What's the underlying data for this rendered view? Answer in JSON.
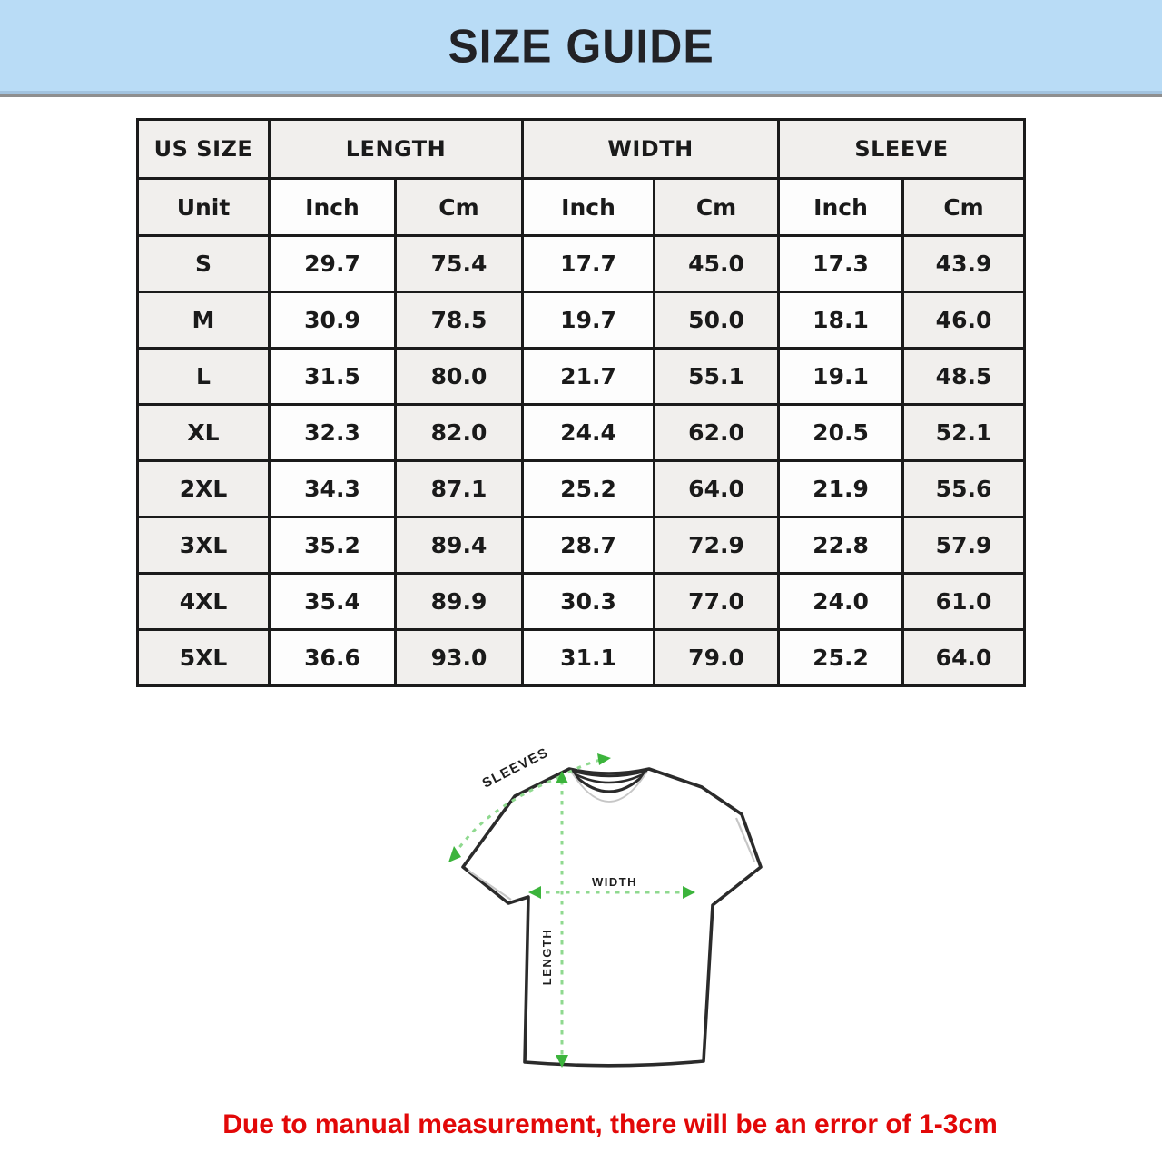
{
  "banner": {
    "title": "SIZE GUIDE",
    "bg_color": "#b9dcf6"
  },
  "table": {
    "col_groups": [
      {
        "label": "US SIZE",
        "span": 1
      },
      {
        "label": "LENGTH",
        "span": 2
      },
      {
        "label": "WIDTH",
        "span": 2
      },
      {
        "label": "SLEEVE",
        "span": 2
      }
    ],
    "unit_row": [
      "Unit",
      "Inch",
      "Cm",
      "Inch",
      "Cm",
      "Inch",
      "Cm"
    ],
    "rows": [
      {
        "size": "S",
        "values": [
          "29.7",
          "75.4",
          "17.7",
          "45.0",
          "17.3",
          "43.9"
        ]
      },
      {
        "size": "M",
        "values": [
          "30.9",
          "78.5",
          "19.7",
          "50.0",
          "18.1",
          "46.0"
        ]
      },
      {
        "size": "L",
        "values": [
          "31.5",
          "80.0",
          "21.7",
          "55.1",
          "19.1",
          "48.5"
        ]
      },
      {
        "size": "XL",
        "values": [
          "32.3",
          "82.0",
          "24.4",
          "62.0",
          "20.5",
          "52.1"
        ]
      },
      {
        "size": "2XL",
        "values": [
          "34.3",
          "87.1",
          "25.2",
          "64.0",
          "21.9",
          "55.6"
        ]
      },
      {
        "size": "3XL",
        "values": [
          "35.2",
          "89.4",
          "28.7",
          "72.9",
          "22.8",
          "57.9"
        ]
      },
      {
        "size": "4XL",
        "values": [
          "35.4",
          "89.9",
          "30.3",
          "77.0",
          "24.0",
          "61.0"
        ]
      },
      {
        "size": "5XL",
        "values": [
          "36.6",
          "93.0",
          "31.1",
          "79.0",
          "25.2",
          "64.0"
        ]
      }
    ],
    "colors": {
      "cell_gray": "#f1efed",
      "cell_white": "#fdfdfd",
      "border": "#1b1b1b"
    }
  },
  "diagram": {
    "labels": {
      "sleeves": "SLEEVES",
      "width": "WIDTH",
      "length": "LENGTH"
    },
    "colors": {
      "outline": "#2b2b2b",
      "dash_green": "#8fd98f",
      "arrow_green": "#3cb43c",
      "seam_gray": "#c6c6c6"
    }
  },
  "footer": {
    "note": "Due to manual measurement, there will be an error of 1-3cm",
    "color": "#e20808"
  }
}
